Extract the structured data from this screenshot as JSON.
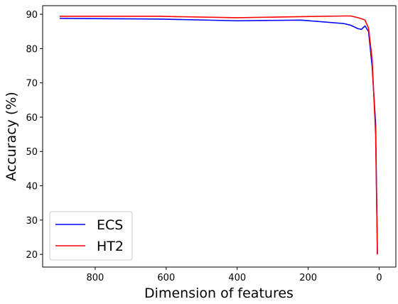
{
  "chart_data": {
    "type": "line",
    "x_label": "Dimension of features",
    "y_label": "Accuracy (%)",
    "x": [
      900,
      620,
      400,
      220,
      100,
      80,
      60,
      50,
      40,
      30,
      20,
      10,
      5
    ],
    "series": [
      {
        "name": "ECS",
        "color": "#0000ff",
        "values": [
          88.8,
          88.6,
          88.1,
          88.3,
          87.3,
          86.8,
          85.8,
          85.6,
          86.6,
          85.0,
          75,
          58,
          20
        ]
      },
      {
        "name": "HT2",
        "color": "#ff0000",
        "values": [
          89.4,
          89.4,
          89.0,
          89.3,
          89.5,
          89.5,
          89.0,
          88.7,
          88.3,
          86,
          77,
          55,
          20
        ]
      }
    ],
    "xlim": [
      948,
      -47
    ],
    "xticks": [
      800,
      600,
      400,
      200,
      0
    ],
    "ylim": [
      16.3,
      92.5
    ],
    "yticks": [
      20,
      30,
      40,
      50,
      60,
      70,
      80,
      90
    ],
    "legend": "lower left"
  }
}
